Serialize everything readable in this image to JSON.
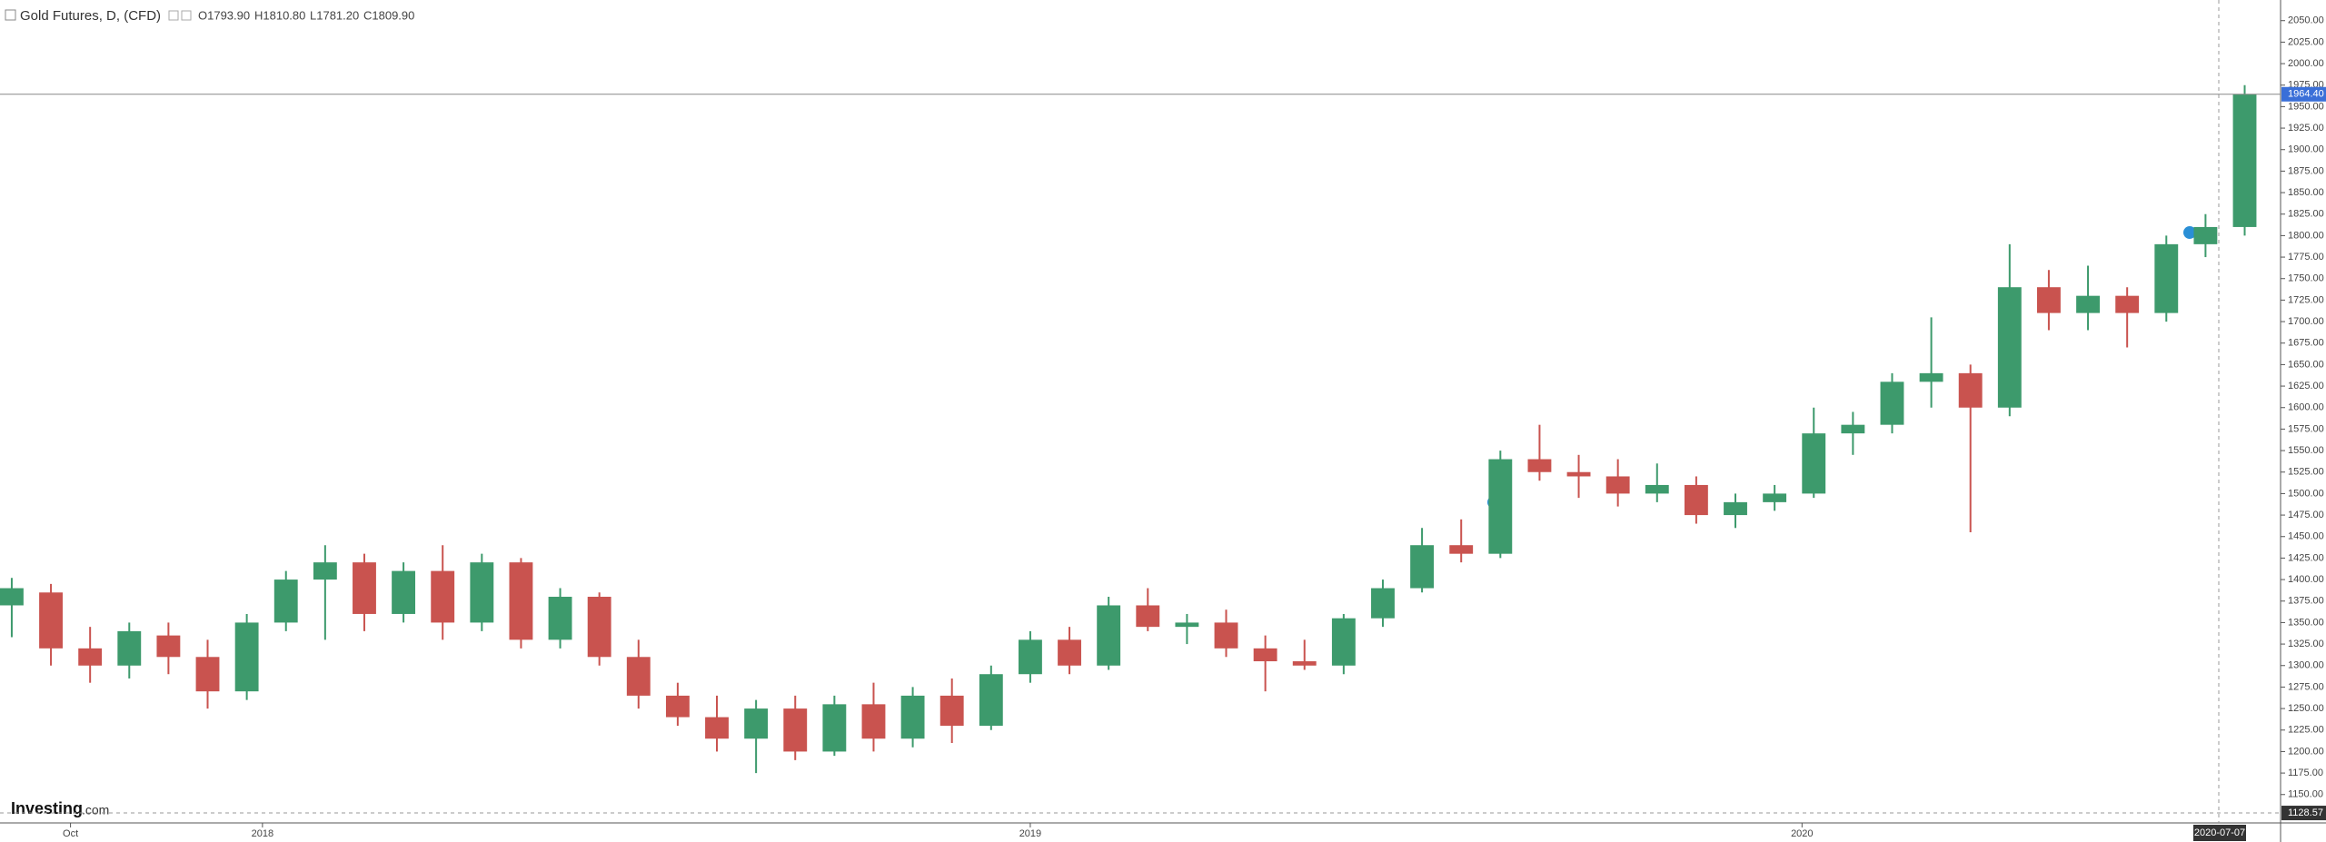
{
  "chart_data": {
    "type": "candlestick",
    "title": "Gold Futures, D, (CFD)",
    "legend_values": [
      "O1793.90",
      "H1810.80",
      "L1781.20",
      "C1809.90"
    ],
    "logo": [
      "Investing",
      ".com"
    ],
    "crosshair_date": "2020-07-07",
    "up_color": "#3d9a6c",
    "down_color": "#c9534f",
    "open": [
      1370,
      1385,
      1320,
      1300,
      1335,
      1310,
      1270,
      1350,
      1400,
      1420,
      1360,
      1410,
      1350,
      1420,
      1330,
      1380,
      1310,
      1265,
      1240,
      1215,
      1250,
      1200,
      1255,
      1215,
      1265,
      1230,
      1290,
      1330,
      1300,
      1370,
      1345,
      1350,
      1320,
      1305,
      1300,
      1355,
      1390,
      1440,
      1430,
      1540,
      1525,
      1520,
      1500,
      1510,
      1475,
      1490,
      1500,
      1570,
      1580,
      1630,
      1640,
      1600,
      1740,
      1710,
      1730,
      1710,
      1790,
      1810
    ],
    "high": [
      1402,
      1395,
      1345,
      1350,
      1350,
      1330,
      1360,
      1410,
      1440,
      1430,
      1420,
      1440,
      1430,
      1425,
      1390,
      1385,
      1330,
      1280,
      1265,
      1260,
      1265,
      1265,
      1280,
      1275,
      1285,
      1300,
      1340,
      1345,
      1380,
      1390,
      1360,
      1365,
      1335,
      1330,
      1360,
      1400,
      1460,
      1470,
      1550,
      1580,
      1545,
      1540,
      1535,
      1520,
      1500,
      1510,
      1600,
      1595,
      1640,
      1705,
      1650,
      1790,
      1760,
      1765,
      1740,
      1800,
      1825,
      1975
    ],
    "low": [
      1333,
      1300,
      1280,
      1285,
      1290,
      1250,
      1260,
      1340,
      1330,
      1340,
      1350,
      1330,
      1340,
      1320,
      1320,
      1300,
      1250,
      1230,
      1200,
      1175,
      1190,
      1195,
      1200,
      1205,
      1210,
      1225,
      1280,
      1290,
      1295,
      1340,
      1325,
      1310,
      1270,
      1295,
      1290,
      1345,
      1385,
      1420,
      1425,
      1515,
      1495,
      1485,
      1490,
      1465,
      1460,
      1480,
      1495,
      1545,
      1570,
      1600,
      1455,
      1590,
      1690,
      1690,
      1670,
      1700,
      1775,
      1800
    ],
    "close": [
      1390,
      1320,
      1300,
      1340,
      1310,
      1270,
      1350,
      1400,
      1420,
      1360,
      1410,
      1350,
      1420,
      1330,
      1380,
      1310,
      1265,
      1240,
      1215,
      1250,
      1200,
      1255,
      1215,
      1265,
      1230,
      1290,
      1330,
      1300,
      1370,
      1345,
      1350,
      1320,
      1305,
      1300,
      1355,
      1390,
      1440,
      1430,
      1540,
      1525,
      1520,
      1500,
      1510,
      1475,
      1490,
      1500,
      1570,
      1580,
      1630,
      1640,
      1600,
      1740,
      1710,
      1730,
      1710,
      1790,
      1810,
      1964.4
    ],
    "xlim": [
      -0.3,
      57.8
    ],
    "xticks": [
      {
        "value": 1.5,
        "label": "Oct"
      },
      {
        "value": 6.4,
        "label": "2018"
      },
      {
        "value": 26,
        "label": "2019"
      },
      {
        "value": 45.7,
        "label": "2020"
      }
    ],
    "ylim": [
      1117,
      2074
    ],
    "yticks": [
      {
        "value": 1150,
        "label": "1150.00"
      },
      {
        "value": 1175,
        "label": "1175.00"
      },
      {
        "value": 1200,
        "label": "1200.00"
      },
      {
        "value": 1225,
        "label": "1225.00"
      },
      {
        "value": 1250,
        "label": "1250.00"
      },
      {
        "value": 1275,
        "label": "1275.00"
      },
      {
        "value": 1300,
        "label": "1300.00"
      },
      {
        "value": 1325,
        "label": "1325.00"
      },
      {
        "value": 1350,
        "label": "1350.00"
      },
      {
        "value": 1375,
        "label": "1375.00"
      },
      {
        "value": 1400,
        "label": "1400.00"
      },
      {
        "value": 1425,
        "label": "1425.00"
      },
      {
        "value": 1450,
        "label": "1450.00"
      },
      {
        "value": 1475,
        "label": "1475.00"
      },
      {
        "value": 1500,
        "label": "1500.00"
      },
      {
        "value": 1525,
        "label": "1525.00"
      },
      {
        "value": 1550,
        "label": "1550.00"
      },
      {
        "value": 1575,
        "label": "1575.00"
      },
      {
        "value": 1600,
        "label": "1600.00"
      },
      {
        "value": 1625,
        "label": "1625.00"
      },
      {
        "value": 1650,
        "label": "1650.00"
      },
      {
        "value": 1675,
        "label": "1675.00"
      },
      {
        "value": 1700,
        "label": "1700.00"
      },
      {
        "value": 1725,
        "label": "1725.00"
      },
      {
        "value": 1750,
        "label": "1750.00"
      },
      {
        "value": 1775,
        "label": "1775.00"
      },
      {
        "value": 1800,
        "label": "1800.00"
      },
      {
        "value": 1825,
        "label": "1825.00"
      },
      {
        "value": 1850,
        "label": "1850.00"
      },
      {
        "value": 1875,
        "label": "1875.00"
      },
      {
        "value": 1900,
        "label": "1900.00"
      },
      {
        "value": 1925,
        "label": "1925.00"
      },
      {
        "value": 1950,
        "label": "1950.00"
      },
      {
        "value": 1975,
        "label": "1975.00"
      },
      {
        "value": 2000,
        "label": "2000.00"
      },
      {
        "value": 2025,
        "label": "2025.00"
      },
      {
        "value": 2050,
        "label": "2050.00"
      }
    ],
    "last_price": {
      "value": 1964.4,
      "label": "1964.40"
    },
    "low_marker": {
      "value": 1128.57,
      "label": "1128.57"
    }
  }
}
